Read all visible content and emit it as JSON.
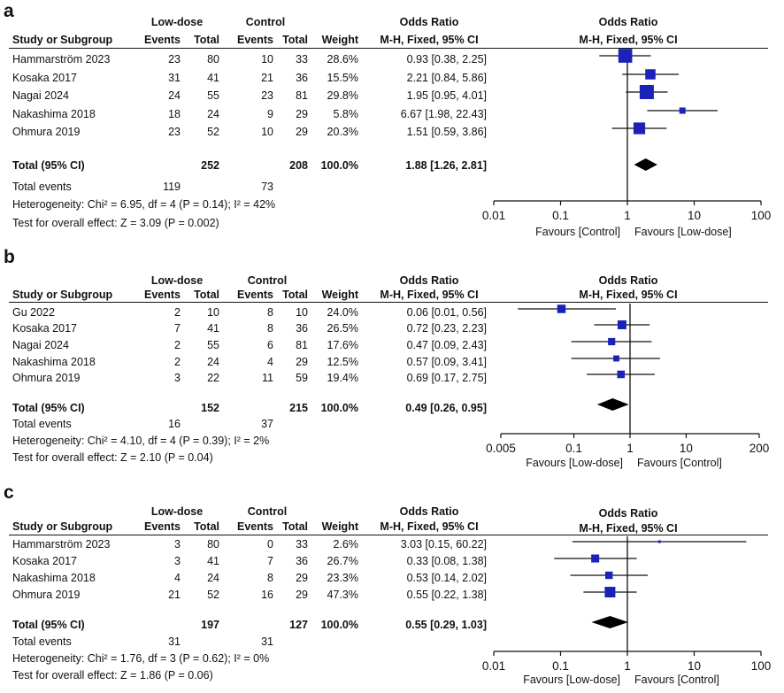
{
  "panels": [
    {
      "label": "a",
      "header": {
        "group1": "Low-dose",
        "group2": "Control",
        "or_title": "Odds Ratio",
        "plot_title": "Odds Ratio",
        "study": "Study or Subgroup",
        "events1": "Events",
        "total1": "Total",
        "events2": "Events",
        "total2": "Total",
        "weight": "Weight",
        "method": "M-H, Fixed, 95% CI",
        "plot_method": "M-H, Fixed, 95% CI"
      },
      "studies": [
        {
          "name": "Hammarström 2023",
          "e1": "23",
          "t1": "80",
          "e2": "10",
          "t2": "33",
          "w": "28.6%",
          "ci": "0.93 [0.38, 2.25]"
        },
        {
          "name": "Kosaka 2017",
          "e1": "31",
          "t1": "41",
          "e2": "21",
          "t2": "36",
          "w": "15.5%",
          "ci": "2.21 [0.84, 5.86]"
        },
        {
          "name": "Nagai 2024",
          "e1": "24",
          "t1": "55",
          "e2": "23",
          "t2": "81",
          "w": "29.8%",
          "ci": "1.95 [0.95, 4.01]"
        },
        {
          "name": "Nakashima 2018",
          "e1": "18",
          "t1": "24",
          "e2": "9",
          "t2": "29",
          "w": "5.8%",
          "ci": "6.67 [1.98, 22.43]"
        },
        {
          "name": "Ohmura 2019",
          "e1": "23",
          "t1": "52",
          "e2": "10",
          "t2": "29",
          "w": "20.3%",
          "ci": "1.51 [0.59, 3.86]"
        }
      ],
      "total": {
        "label": "Total (95% CI)",
        "t1": "252",
        "t2": "208",
        "w": "100.0%",
        "ci": "1.88 [1.26, 2.81]"
      },
      "total_events": {
        "label": "Total events",
        "e1": "119",
        "e2": "73"
      },
      "heterogeneity": "Heterogeneity: Chi² = 6.95, df = 4 (P = 0.14); I² = 42%",
      "overall": "Test for overall effect: Z = 3.09 (P = 0.002)",
      "favours_left": "Favours [Control]",
      "favours_right": "Favours [Low-dose]"
    },
    {
      "label": "b",
      "header": {
        "group1": "Low-dose",
        "group2": "Control",
        "or_title": "Odds Ratio",
        "plot_title": "Odds Ratio",
        "study": "Study or Subgroup",
        "events1": "Events",
        "total1": "Total",
        "events2": "Events",
        "total2": "Total",
        "weight": "Weight",
        "method": "M-H, Fixed, 95% CI",
        "plot_method": "M-H, Fixed, 95% CI"
      },
      "studies": [
        {
          "name": "Gu 2022",
          "e1": "2",
          "t1": "10",
          "e2": "8",
          "t2": "10",
          "w": "24.0%",
          "ci": "0.06 [0.01, 0.56]"
        },
        {
          "name": "Kosaka 2017",
          "e1": "7",
          "t1": "41",
          "e2": "8",
          "t2": "36",
          "w": "26.5%",
          "ci": "0.72 [0.23, 2.23]"
        },
        {
          "name": "Nagai 2024",
          "e1": "2",
          "t1": "55",
          "e2": "6",
          "t2": "81",
          "w": "17.6%",
          "ci": "0.47 [0.09, 2.43]"
        },
        {
          "name": "Nakashima 2018",
          "e1": "2",
          "t1": "24",
          "e2": "4",
          "t2": "29",
          "w": "12.5%",
          "ci": "0.57 [0.09, 3.41]"
        },
        {
          "name": "Ohmura 2019",
          "e1": "3",
          "t1": "22",
          "e2": "11",
          "t2": "59",
          "w": "19.4%",
          "ci": "0.69 [0.17, 2.75]"
        }
      ],
      "total": {
        "label": "Total (95% CI)",
        "t1": "152",
        "t2": "215",
        "w": "100.0%",
        "ci": "0.49 [0.26, 0.95]"
      },
      "total_events": {
        "label": "Total events",
        "e1": "16",
        "e2": "37"
      },
      "heterogeneity": "Heterogeneity: Chi² = 4.10, df = 4 (P = 0.39); I² = 2%",
      "overall": "Test for overall effect: Z = 2.10 (P = 0.04)",
      "favours_left": "Favours [Low-dose]",
      "favours_right": "Favours [Control]"
    },
    {
      "label": "c",
      "header": {
        "group1": "Low-dose",
        "group2": "Control",
        "or_title": "Odds Ratio",
        "plot_title": "Odds Ratio",
        "study": "Study or Subgroup",
        "events1": "Events",
        "total1": "Total",
        "events2": "Events",
        "total2": "Total",
        "weight": "Weight",
        "method": "M-H, Fixed, 95% CI",
        "plot_method": "M-H, Fixed, 95% CI"
      },
      "studies": [
        {
          "name": "Hammarström 2023",
          "e1": "3",
          "t1": "80",
          "e2": "0",
          "t2": "33",
          "w": "2.6%",
          "ci": "3.03 [0.15, 60.22]"
        },
        {
          "name": "Kosaka 2017",
          "e1": "3",
          "t1": "41",
          "e2": "7",
          "t2": "36",
          "w": "26.7%",
          "ci": "0.33 [0.08, 1.38]"
        },
        {
          "name": "Nakashima 2018",
          "e1": "4",
          "t1": "24",
          "e2": "8",
          "t2": "29",
          "w": "23.3%",
          "ci": "0.53 [0.14, 2.02]"
        },
        {
          "name": "Ohmura 2019",
          "e1": "21",
          "t1": "52",
          "e2": "16",
          "t2": "29",
          "w": "47.3%",
          "ci": "0.55 [0.22, 1.38]"
        }
      ],
      "total": {
        "label": "Total (95% CI)",
        "t1": "197",
        "t2": "127",
        "w": "100.0%",
        "ci": "0.55 [0.29, 1.03]"
      },
      "total_events": {
        "label": "Total events",
        "e1": "31",
        "e2": "31"
      },
      "heterogeneity": "Heterogeneity: Chi² = 1.76, df = 3 (P = 0.62); I² = 0%",
      "overall": "Test for overall effect: Z = 1.86 (P = 0.06)",
      "favours_left": "Favours [Low-dose]",
      "favours_right": "Favours [Control]"
    }
  ],
  "chart_data": [
    {
      "type": "forest",
      "title": "Odds Ratio M-H, Fixed, 95% CI",
      "scale": "log",
      "xlim": [
        0.01,
        100
      ],
      "ticks": [
        "0.01",
        "0.1",
        "1",
        "10",
        "100"
      ],
      "tick_values": [
        0.01,
        0.1,
        1,
        10,
        100
      ],
      "studies": [
        "Hammarström 2023",
        "Kosaka 2017",
        "Nagai 2024",
        "Nakashima 2018",
        "Ohmura 2019"
      ],
      "or": [
        0.93,
        2.21,
        1.95,
        6.67,
        1.51
      ],
      "lower": [
        0.38,
        0.84,
        0.95,
        1.98,
        0.59
      ],
      "upper": [
        2.25,
        5.86,
        4.01,
        22.43,
        3.86
      ],
      "weights": [
        28.6,
        15.5,
        29.8,
        5.8,
        20.3
      ],
      "pooled": {
        "or": 1.88,
        "lower": 1.26,
        "upper": 2.81
      },
      "xlabel_left": "Favours [Control]",
      "xlabel_right": "Favours [Low-dose]"
    },
    {
      "type": "forest",
      "title": "Odds Ratio M-H, Fixed, 95% CI",
      "scale": "log",
      "xlim": [
        0.005,
        200
      ],
      "ticks": [
        "0.005",
        "0.1",
        "1",
        "10",
        "200"
      ],
      "tick_values": [
        0.005,
        0.1,
        1,
        10,
        200
      ],
      "studies": [
        "Gu 2022",
        "Kosaka 2017",
        "Nagai 2024",
        "Nakashima 2018",
        "Ohmura 2019"
      ],
      "or": [
        0.06,
        0.72,
        0.47,
        0.57,
        0.69
      ],
      "lower": [
        0.01,
        0.23,
        0.09,
        0.09,
        0.17
      ],
      "upper": [
        0.56,
        2.23,
        2.43,
        3.41,
        2.75
      ],
      "weights": [
        24.0,
        26.5,
        17.6,
        12.5,
        19.4
      ],
      "pooled": {
        "or": 0.49,
        "lower": 0.26,
        "upper": 0.95
      },
      "xlabel_left": "Favours [Low-dose]",
      "xlabel_right": "Favours [Control]"
    },
    {
      "type": "forest",
      "title": "Odds Ratio M-H, Fixed, 95% CI",
      "scale": "log",
      "xlim": [
        0.01,
        100
      ],
      "ticks": [
        "0.01",
        "0.1",
        "1",
        "10",
        "100"
      ],
      "tick_values": [
        0.01,
        0.1,
        1,
        10,
        100
      ],
      "studies": [
        "Hammarström 2023",
        "Kosaka 2017",
        "Nakashima 2018",
        "Ohmura 2019"
      ],
      "or": [
        3.03,
        0.33,
        0.53,
        0.55
      ],
      "lower": [
        0.15,
        0.08,
        0.14,
        0.22
      ],
      "upper": [
        60.22,
        1.38,
        2.02,
        1.38
      ],
      "weights": [
        2.6,
        26.7,
        23.3,
        47.3
      ],
      "pooled": {
        "or": 0.55,
        "lower": 0.29,
        "upper": 1.03
      },
      "xlabel_left": "Favours [Low-dose]",
      "xlabel_right": "Favours [Control]"
    }
  ]
}
